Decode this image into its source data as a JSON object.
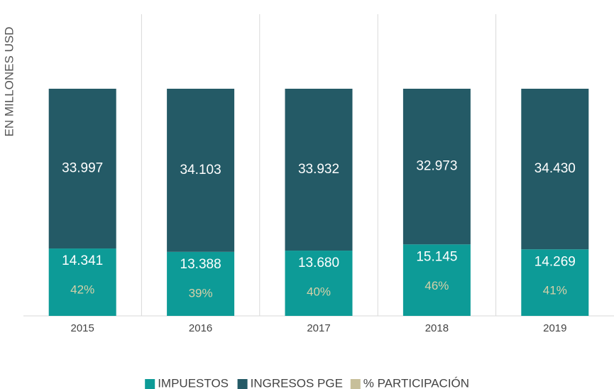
{
  "chart_data": {
    "type": "bar",
    "stacked": "percent",
    "y_label": "EN MILLONES USD",
    "categories": [
      "2015",
      "2016",
      "2017",
      "2018",
      "2019"
    ],
    "series": [
      {
        "name": "IMPUESTOS",
        "color": "#0d9b97",
        "values": [
          14341,
          13388,
          13680,
          15145,
          14269
        ],
        "value_labels": [
          "14.341",
          "13.388",
          "13.680",
          "15.145",
          "14.269"
        ]
      },
      {
        "name": "INGRESOS PGE",
        "color": "#245a66",
        "values": [
          33997,
          34103,
          33932,
          32973,
          34430
        ],
        "value_labels": [
          "33.997",
          "34.103",
          "33.932",
          "32.973",
          "34.430"
        ]
      },
      {
        "name": "% PARTICIPACIÓN",
        "color": "#c7bf9a",
        "values": [
          42,
          39,
          40,
          46,
          41
        ],
        "value_labels": [
          "42%",
          "39%",
          "40%",
          "46%",
          "41%"
        ],
        "labels_only": true
      }
    ],
    "grid": true,
    "legend": "bottom"
  }
}
